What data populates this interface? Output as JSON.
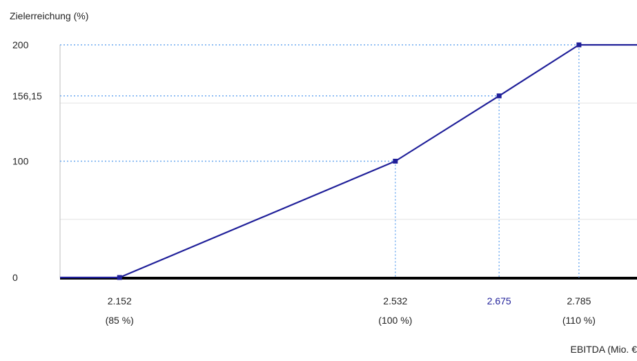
{
  "chart_data": {
    "type": "line",
    "ylabel": "Zielerreichung (%)",
    "xlabel": "EBITDA (Mio. €",
    "x_domain": [
      2.07,
      2.865
    ],
    "ylim": [
      0,
      200
    ],
    "y_ticks": [
      {
        "value": 0,
        "label": "0"
      },
      {
        "value": 100,
        "label": "100"
      },
      {
        "value": 156.15,
        "label": "156,15"
      },
      {
        "value": 200,
        "label": "200"
      }
    ],
    "minor_gridlines_y": [
      50,
      150
    ],
    "x_ticks": [
      {
        "value": 2.152,
        "label": "2.152",
        "sub": "(85 %)"
      },
      {
        "value": 2.532,
        "label": "2.532",
        "sub": "(100 %)"
      },
      {
        "value": 2.675,
        "label": "2.675",
        "sub": "",
        "highlight": true
      },
      {
        "value": 2.785,
        "label": "2.785",
        "sub": "(110 %)"
      }
    ],
    "series": [
      {
        "color": "#1f1f99",
        "points": [
          {
            "x": 2.07,
            "y": 0
          },
          {
            "x": 2.152,
            "y": 0
          },
          {
            "x": 2.532,
            "y": 100
          },
          {
            "x": 2.675,
            "y": 156.15
          },
          {
            "x": 2.785,
            "y": 200
          },
          {
            "x": 2.865,
            "y": 200
          }
        ],
        "markers": [
          2.152,
          2.532,
          2.675,
          2.785
        ]
      }
    ],
    "guide_lines": [
      {
        "x": 2.532,
        "y": 100
      },
      {
        "x": 2.675,
        "y": 156.15
      },
      {
        "x": 2.785,
        "y": 200
      }
    ],
    "guide_color": "#6aa8f0",
    "grid": true,
    "legend": "none"
  }
}
